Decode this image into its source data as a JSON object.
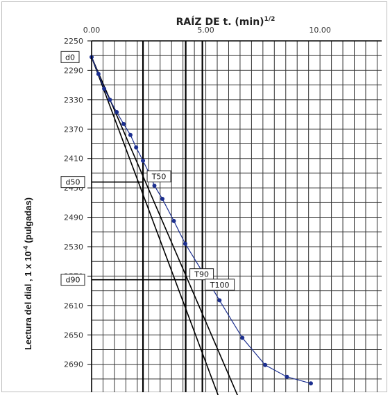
{
  "chart_data": {
    "type": "line",
    "title": "RAÍZ DE t. (min)",
    "title_superscript": "1/2",
    "ylabel": "Lectura del dial , 1 x 10",
    "ylabel_superscript": "-4",
    "ylabel_suffix": "(pulgadas)",
    "x_ticks": [
      "0.00",
      "5.00",
      "10.00"
    ],
    "x_tick_values": [
      0,
      5,
      10
    ],
    "y_ticks": [
      "2250",
      "2290",
      "2330",
      "2370",
      "2410",
      "2450",
      "2490",
      "2530",
      "2570",
      "2610",
      "2650",
      "2690"
    ],
    "y_tick_values": [
      2250,
      2290,
      2330,
      2370,
      2410,
      2450,
      2490,
      2530,
      2570,
      2610,
      2650,
      2690
    ],
    "xlim": [
      0,
      12.7
    ],
    "ylim": [
      2250,
      2728
    ],
    "reversed_y": true,
    "axis_position": "x-axis-top",
    "grid": true,
    "vertical_grid_step": 0.5,
    "horizontal_grid_step": 20,
    "series": [
      {
        "color": "#1c2f8f",
        "x": [
          0.0,
          0.3,
          0.55,
          0.8,
          1.1,
          1.4,
          1.7,
          1.95,
          2.25,
          2.55,
          2.75,
          3.1,
          3.6,
          4.1,
          4.85,
          5.6,
          6.6,
          7.6,
          8.55,
          9.6
        ],
        "y": [
          2272,
          2295,
          2315,
          2330,
          2347,
          2363,
          2378,
          2395,
          2413,
          2432,
          2447,
          2465,
          2495,
          2526,
          2564,
          2603,
          2654,
          2691,
          2707,
          2716
        ]
      }
    ],
    "construction_lines": [
      {
        "x": [
          0.0,
          6.4
        ],
        "y": [
          2272,
          2733
        ]
      },
      {
        "x": [
          0.0,
          5.55
        ],
        "y": [
          2272,
          2733
        ]
      }
    ],
    "vertical_markers": [
      {
        "label": "T50",
        "x": 2.25
      },
      {
        "label": "T90",
        "x": 4.12
      },
      {
        "label": "T100",
        "x": 4.85
      }
    ],
    "horizontal_markers": [
      {
        "label": "d0",
        "y": 2272
      },
      {
        "label": "d50",
        "y": 2442
      },
      {
        "label": "d90",
        "y": 2575
      }
    ],
    "annotations": [
      {
        "text": "d0",
        "x": 0.0,
        "y": 2272
      },
      {
        "text": "d50",
        "x": 2.25,
        "y": 2442
      },
      {
        "text": "T50",
        "x": 2.25,
        "y": 2442
      },
      {
        "text": "d90",
        "x": 4.12,
        "y": 2575
      },
      {
        "text": "T90",
        "x": 4.12,
        "y": 2575
      },
      {
        "text": "T100",
        "x": 4.85,
        "y": 2593
      }
    ],
    "colors": {
      "grid": "#333333",
      "data": "#1c2f8f",
      "construction": "#000000"
    }
  }
}
